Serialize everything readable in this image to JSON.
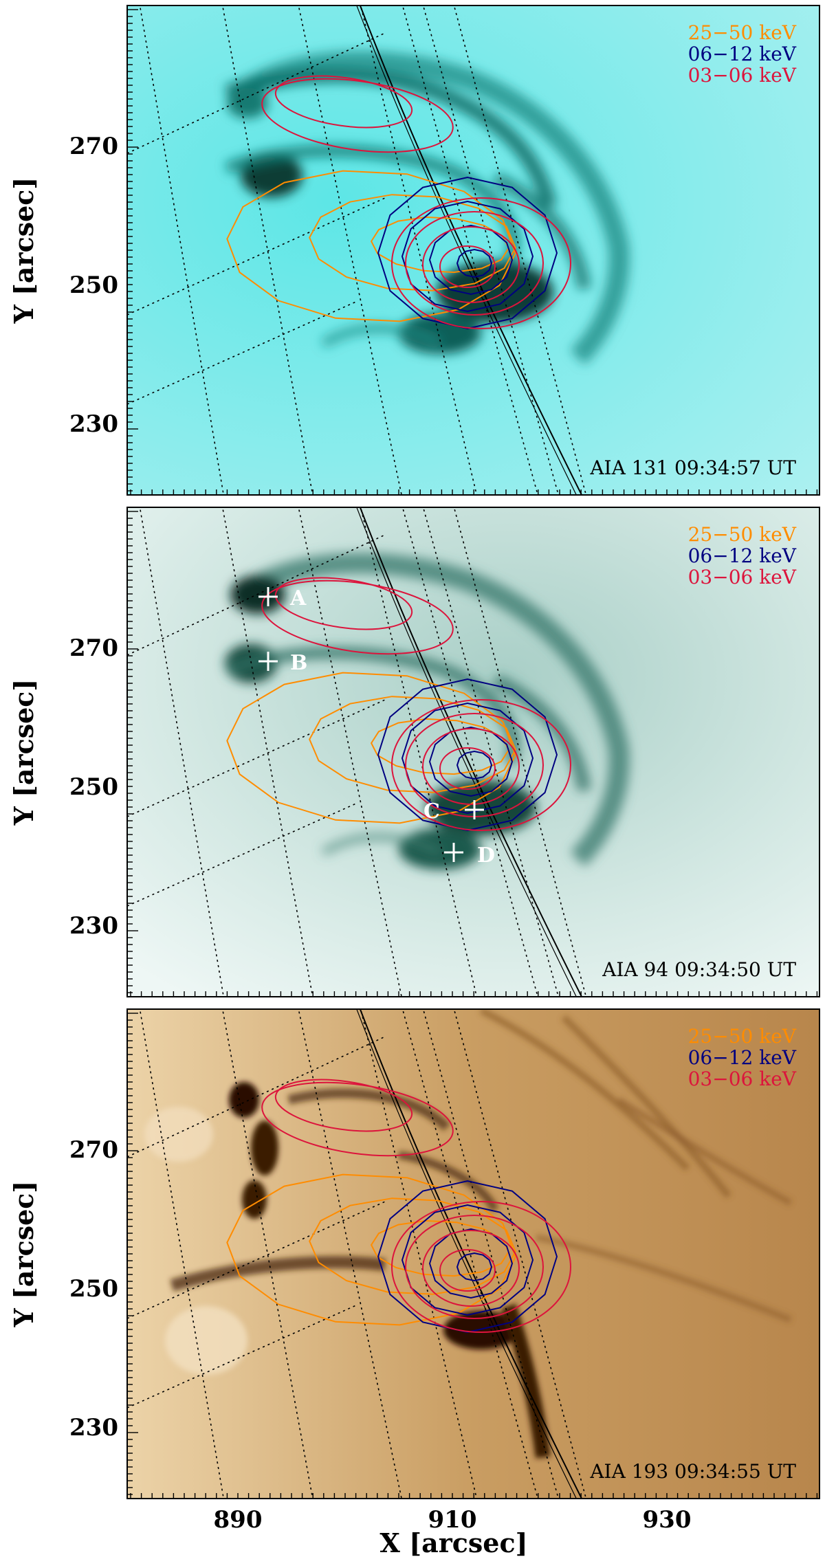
{
  "figure": {
    "x_axis": {
      "label": "X [arcsec]",
      "ticks": [
        "890",
        "910",
        "930"
      ]
    },
    "y_axis": {
      "label": "Y [arcsec]",
      "ticks": [
        "270",
        "250",
        "230"
      ]
    },
    "legend": [
      {
        "text": "25−50 keV",
        "color": "#ff8c00"
      },
      {
        "text": "06−12 keV",
        "color": "#000080"
      },
      {
        "text": "03−06 keV",
        "color": "#dc143c"
      }
    ],
    "panels": [
      {
        "id": "aia131",
        "caption": "AIA 131   09:34:57 UT",
        "base_color": "#4fe3e3",
        "dark_color": "#0a4a44"
      },
      {
        "id": "aia94",
        "caption": "AIA 94   09:34:50 UT",
        "base_color": "#e4f2ef",
        "dark_color": "#0d3c30",
        "points": [
          {
            "label": "A"
          },
          {
            "label": "B"
          },
          {
            "label": "C"
          },
          {
            "label": "D"
          }
        ]
      },
      {
        "id": "aia193",
        "caption": "AIA 193   09:34:55 UT",
        "base_color": "#d8b580",
        "dark_color": "#2a0f00"
      }
    ]
  }
}
